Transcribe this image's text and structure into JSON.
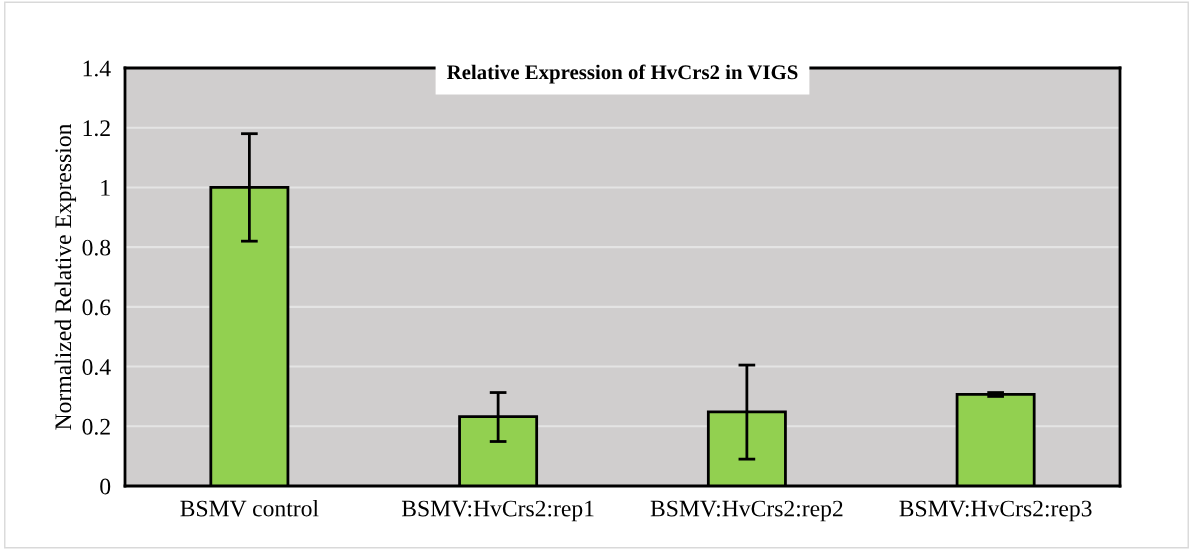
{
  "chart_data": {
    "type": "bar",
    "title": "Relative Expression of HvCrs2 in VIGS",
    "ylabel": "Normalized Relative Expression",
    "categories": [
      "BSMV control",
      "BSMV:HvCrs2:rep1",
      "BSMV:HvCrs2:rep2",
      "BSMV:HvCrs2:rep3"
    ],
    "values": [
      1.0,
      0.232,
      0.248,
      0.307
    ],
    "errors": [
      [
        0.82,
        1.18
      ],
      [
        0.149,
        0.313
      ],
      [
        0.09,
        0.405
      ],
      [
        0.3,
        0.313
      ]
    ],
    "color": "#92d050",
    "ylim": [
      0,
      1.4
    ],
    "yticks": [
      0,
      0.2,
      0.4,
      0.6,
      0.8,
      1,
      1.2,
      1.4
    ],
    "grid": "y"
  }
}
